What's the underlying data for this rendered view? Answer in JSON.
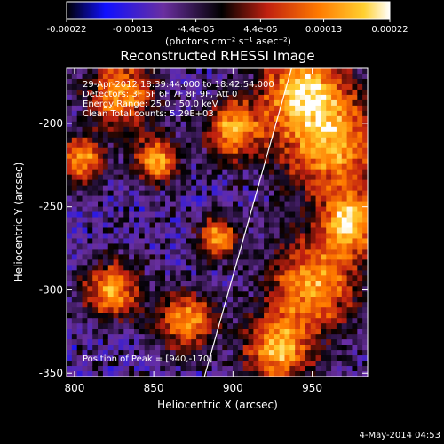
{
  "chart_data": {
    "type": "heatmap",
    "title": "Reconstructed RHESSI Image",
    "xlabel": "Heliocentric X (arcsec)",
    "ylabel": "Heliocentric Y (arcsec)",
    "xlim": [
      795,
      985
    ],
    "ylim": [
      -352,
      -167
    ],
    "x_ticks": [
      800,
      850,
      900,
      950
    ],
    "y_ticks": [
      -200,
      -250,
      -300,
      -350
    ],
    "colorbar": {
      "ticks": [
        "-0.00022",
        "-0.00013",
        "-4.4e-05",
        "4.4e-05",
        "0.00013",
        "0.00022"
      ],
      "unit_label": "(photons cm⁻² s⁻¹ asec⁻²)",
      "range": [
        -0.00022,
        0.00022
      ],
      "colormap": [
        "#000000",
        "#1010ff",
        "#6a2fa0",
        "#000000",
        "#c02010",
        "#ff7a00",
        "#ffd030",
        "#ffffff"
      ]
    },
    "annotations": [
      "29-Apr-2012 18:39:44.000 to 18:42:54.000",
      "Detectors: 3F 5F 6F 7F 8F 9F, Att 0",
      "Energy Range: 25.0 - 50.0 keV",
      "Clean      Total counts: 5.29E+03"
    ],
    "peak_label": "Position of Peak = [940,-170]",
    "peak": [
      940,
      -170
    ],
    "limb_line": [
      [
        882,
        -352
      ],
      [
        937,
        -167
      ]
    ]
  },
  "footer_date": "4-May-2014 04:53"
}
